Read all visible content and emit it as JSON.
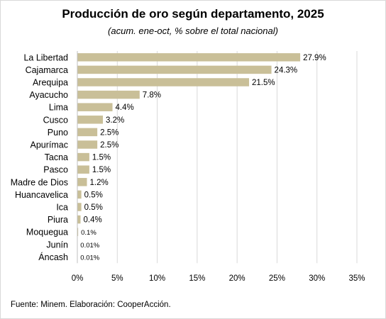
{
  "chart_data": {
    "type": "bar",
    "orientation": "horizontal",
    "title": "Producción de oro según departamento, 2025",
    "subtitle": "(acum. ene-oct, % sobre el total nacional)",
    "categories": [
      "La Libertad",
      "Cajamarca",
      "Arequipa",
      "Ayacucho",
      "Lima",
      "Cusco",
      "Puno",
      "Apurímac",
      "Tacna",
      "Pasco",
      "Madre de Dios",
      "Huancavelica",
      "Ica",
      "Piura",
      "Moquegua",
      "Junín",
      "Áncash"
    ],
    "values": [
      27.9,
      24.3,
      21.5,
      7.8,
      4.4,
      3.2,
      2.5,
      2.5,
      1.5,
      1.5,
      1.2,
      0.5,
      0.5,
      0.4,
      0.1,
      0.01,
      0.01
    ],
    "data_labels": [
      "27.9%",
      "24.3%",
      "21.5%",
      "7.8%",
      "4.4%",
      "3.2%",
      "2.5%",
      "2.5%",
      "1.5%",
      "1.5%",
      "1.2%",
      "0.5%",
      "0.5%",
      "0.4%",
      "0.1%",
      "0.01%",
      "0.01%"
    ],
    "x_ticks": [
      "0%",
      "5%",
      "10%",
      "15%",
      "20%",
      "25%",
      "30%",
      "35%"
    ],
    "xlim": [
      0,
      35
    ],
    "grid": "vertical",
    "bar_color": "#c9bf98",
    "gridline_color": "#d9d9d9"
  },
  "source": "Fuente: Minem. Elaboración: CooperAcción."
}
